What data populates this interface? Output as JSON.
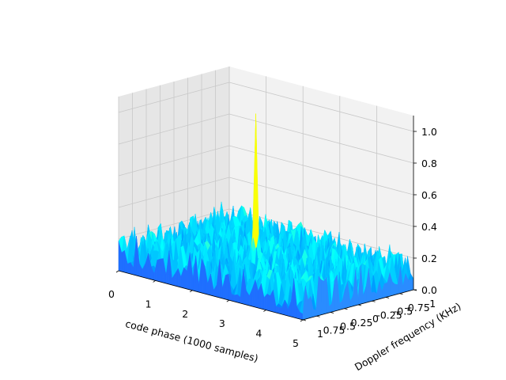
{
  "chart_data": {
    "type": "surface",
    "title": "",
    "xlabel": "code phase (1000 samples)",
    "ylabel": "Doppler frequency (KHz)",
    "zlabel": "",
    "xlim": [
      0,
      5
    ],
    "ylim": [
      -1,
      1
    ],
    "zlim": [
      0,
      1.1
    ],
    "x_ticks": [
      "0",
      "1",
      "2",
      "3",
      "4",
      "5"
    ],
    "y_ticks": [
      "-1",
      "-0.75",
      "-0.5",
      "-0.25",
      "0",
      "0.25",
      "0.5",
      "0.75",
      "1"
    ],
    "z_ticks": [
      "0.0",
      "0.2",
      "0.4",
      "0.6",
      "0.8",
      "1.0"
    ],
    "colormap": "jet",
    "grid": true,
    "noise_floor": {
      "mean": 0.1,
      "spread": 0.14
    },
    "peak": {
      "x": 2.6,
      "y": 0.25,
      "z": 1.08
    }
  }
}
